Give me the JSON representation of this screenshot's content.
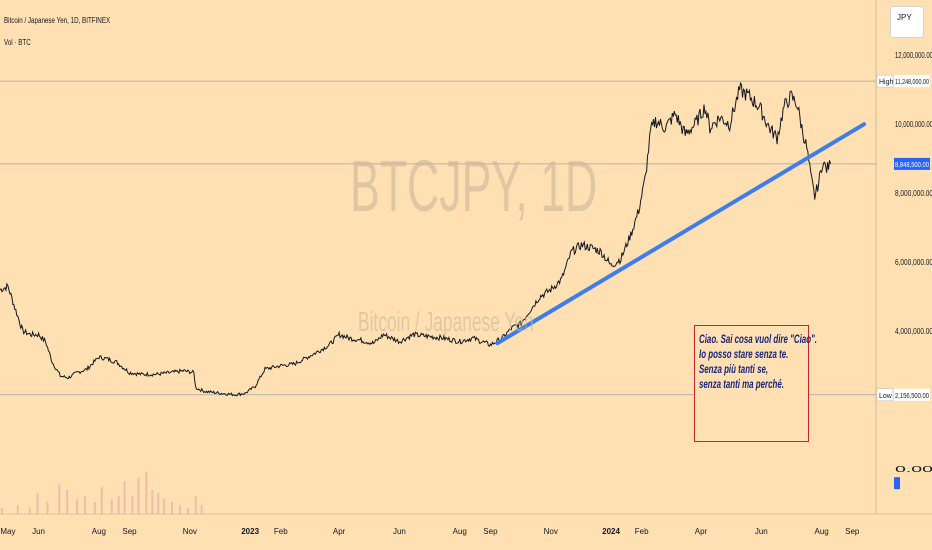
{
  "header": {
    "title": "Bitcoin / Japanese Yen, 1D, BITFINEX",
    "volume_label": "Vol · BTC"
  },
  "currency_button": "JPY",
  "watermark": {
    "symbol": "BTCJPY, 1D",
    "name": "Bitcoin / Japanese Yen"
  },
  "note_lines": [
    "Ciao. Sai cosa vuol dire \"Ciao\".",
    "Io posso stare senza te.",
    "Senza più tanti se,",
    "senza tanti ma perché."
  ],
  "colors": {
    "background": "#ffe0b2",
    "trendline": "#3f7ee8",
    "price_line": "#131722",
    "last_price_badge": "#2962ff",
    "note_border": "#c62828",
    "note_text": "#1a237e"
  },
  "chart_data": {
    "type": "line",
    "title": "Bitcoin / Japanese Yen, 1D, BITFINEX",
    "y_ticks": [
      0,
      4000000,
      6000000,
      8000000,
      10000000,
      12000000
    ],
    "y_tick_labels": [
      "0.00",
      "4,000,000.00",
      "6,000,000.00",
      "8,000,000.00",
      "10,000,000.00",
      "12,000,000.00"
    ],
    "ylim": [
      -1300000,
      13600000
    ],
    "x_tick_labels": [
      "May",
      "Jun",
      "Aug",
      "Sep",
      "Nov",
      "2023",
      "Feb",
      "Apr",
      "Jun",
      "Aug",
      "Sep",
      "Nov",
      "2024",
      "Feb",
      "Apr",
      "Jun",
      "Aug",
      "Sep"
    ],
    "x_tick_days": [
      0,
      31,
      92,
      123,
      184,
      245,
      276,
      335,
      396,
      457,
      488,
      549,
      610,
      641,
      701,
      762,
      823,
      854
    ],
    "xlim_days": [
      -8,
      878
    ],
    "start_date": "2022-05-01",
    "markers": {
      "high": {
        "label": "High",
        "value_label": "11,248,000.00",
        "value": 11248000
      },
      "low": {
        "label": "Low",
        "value_label": "2,156,500.00",
        "value": 2156500
      },
      "last": {
        "value_label": "8,848,500.00",
        "value": 8848500
      }
    },
    "series": [
      {
        "values_note": "approximate daily close, JPY",
        "points": [
          [
            -8,
            5200000
          ],
          [
            0,
            5300000
          ],
          [
            8,
            4600000
          ],
          [
            15,
            4000000
          ],
          [
            23,
            3900000
          ],
          [
            31,
            3900000
          ],
          [
            38,
            3700000
          ],
          [
            45,
            3100000
          ],
          [
            53,
            2700000
          ],
          [
            61,
            2650000
          ],
          [
            70,
            2800000
          ],
          [
            80,
            2900000
          ],
          [
            92,
            3250000
          ],
          [
            100,
            3200000
          ],
          [
            110,
            3100000
          ],
          [
            123,
            2800000
          ],
          [
            135,
            2750000
          ],
          [
            150,
            2750000
          ],
          [
            165,
            2800000
          ],
          [
            178,
            2850000
          ],
          [
            188,
            2800000
          ],
          [
            190,
            2350000
          ],
          [
            200,
            2250000
          ],
          [
            215,
            2200000
          ],
          [
            230,
            2160000
          ],
          [
            240,
            2200000
          ],
          [
            250,
            2400000
          ],
          [
            260,
            2900000
          ],
          [
            276,
            3000000
          ],
          [
            290,
            3050000
          ],
          [
            310,
            3350000
          ],
          [
            325,
            3600000
          ],
          [
            335,
            3900000
          ],
          [
            345,
            3800000
          ],
          [
            355,
            3750000
          ],
          [
            370,
            3650000
          ],
          [
            380,
            3900000
          ],
          [
            396,
            3700000
          ],
          [
            410,
            3900000
          ],
          [
            425,
            3850000
          ],
          [
            440,
            3800000
          ],
          [
            457,
            3700000
          ],
          [
            470,
            3800000
          ],
          [
            488,
            3600000
          ],
          [
            500,
            3800000
          ],
          [
            510,
            4100000
          ],
          [
            518,
            4200000
          ],
          [
            528,
            4600000
          ],
          [
            538,
            5000000
          ],
          [
            549,
            5200000
          ],
          [
            560,
            5500000
          ],
          [
            570,
            6300000
          ],
          [
            580,
            6500000
          ],
          [
            592,
            6400000
          ],
          [
            600,
            6300000
          ],
          [
            610,
            5900000
          ],
          [
            620,
            6100000
          ],
          [
            630,
            6800000
          ],
          [
            638,
            7500000
          ],
          [
            645,
            8500000
          ],
          [
            650,
            9800000
          ],
          [
            655,
            10100000
          ],
          [
            665,
            9900000
          ],
          [
            675,
            10300000
          ],
          [
            685,
            9700000
          ],
          [
            695,
            10000000
          ],
          [
            705,
            10500000
          ],
          [
            710,
            9900000
          ],
          [
            720,
            10200000
          ],
          [
            730,
            10000000
          ],
          [
            740,
            11000000
          ],
          [
            750,
            10800000
          ],
          [
            760,
            10500000
          ],
          [
            770,
            9900000
          ],
          [
            778,
            9600000
          ],
          [
            785,
            10500000
          ],
          [
            792,
            10800000
          ],
          [
            798,
            10600000
          ],
          [
            803,
            9900000
          ],
          [
            808,
            9300000
          ],
          [
            812,
            8500000
          ],
          [
            816,
            7900000
          ],
          [
            820,
            8300000
          ],
          [
            824,
            8900000
          ],
          [
            828,
            8700000
          ],
          [
            832,
            8848500
          ]
        ]
      }
    ],
    "trendline": {
      "start": [
        495,
        3650000
      ],
      "end": [
        866,
        10000000
      ]
    },
    "volume_bars": [
      [
        -6,
        0.1
      ],
      [
        10,
        0.15
      ],
      [
        22,
        0.1
      ],
      [
        30,
        0.35
      ],
      [
        40,
        0.2
      ],
      [
        52,
        0.5
      ],
      [
        60,
        0.4
      ],
      [
        70,
        0.25
      ],
      [
        78,
        0.3
      ],
      [
        88,
        0.2
      ],
      [
        95,
        0.45
      ],
      [
        105,
        0.25
      ],
      [
        112,
        0.3
      ],
      [
        118,
        0.55
      ],
      [
        126,
        0.3
      ],
      [
        132,
        0.6
      ],
      [
        140,
        0.7
      ],
      [
        146,
        0.4
      ],
      [
        152,
        0.35
      ],
      [
        158,
        0.25
      ],
      [
        166,
        0.2
      ],
      [
        174,
        0.15
      ],
      [
        182,
        0.1
      ],
      [
        190,
        0.3
      ],
      [
        196,
        0.15
      ]
    ]
  }
}
